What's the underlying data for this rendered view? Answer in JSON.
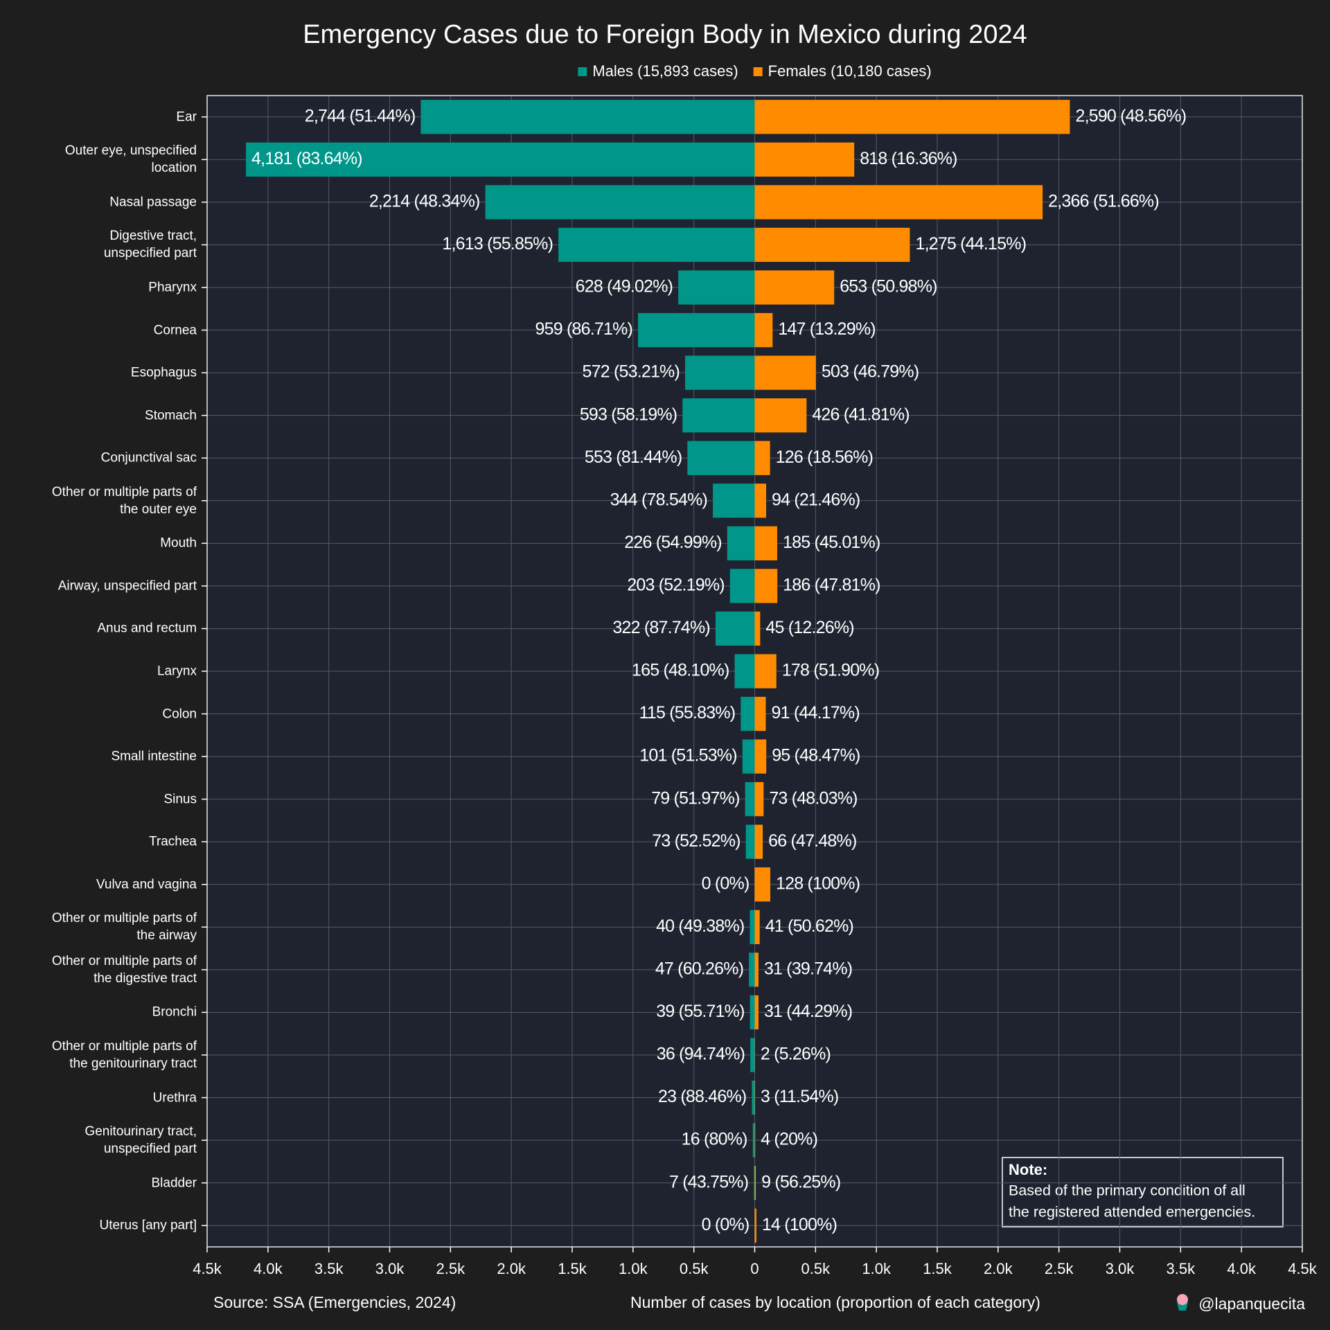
{
  "chart_data": {
    "type": "bar",
    "orientation": "horizontal",
    "layout": "diverging",
    "title": "Emergency Cases due to Foreign Body in Mexico during 2024",
    "source": "Source: SSA (Emergencies, 2024)",
    "x_label": "Number of cases by location (proportion of each category)",
    "credit": "@lapanquecita",
    "note": {
      "title": "Note:",
      "lines": [
        "Based of the primary condition of all",
        "the registered attended emergencies."
      ]
    },
    "categories": [
      "Ear",
      "Outer eye, unspecified\nlocation",
      "Nasal passage",
      "Digestive tract,\nunspecified part",
      "Pharynx",
      "Cornea",
      "Esophagus",
      "Stomach",
      "Conjunctival sac",
      "Other or multiple parts of\nthe outer eye",
      "Mouth",
      "Airway, unspecified part",
      "Anus and rectum",
      "Larynx",
      "Colon",
      "Small intestine",
      "Sinus",
      "Trachea",
      "Vulva and vagina",
      "Other or multiple parts of\nthe airway",
      "Other or multiple parts of\nthe digestive tract",
      "Bronchi",
      "Other or multiple parts of\nthe genitourinary tract",
      "Urethra",
      "Genitourinary tract,\nunspecified part",
      "Bladder",
      "Uterus [any part]"
    ],
    "series": [
      {
        "name": "Males (15,893 cases)",
        "color": "#00968a",
        "side": "left",
        "values": [
          2744,
          4181,
          2214,
          1613,
          628,
          959,
          572,
          593,
          553,
          344,
          226,
          203,
          322,
          165,
          115,
          101,
          79,
          73,
          0,
          40,
          47,
          39,
          36,
          23,
          16,
          7,
          0
        ],
        "value_labels": [
          "2,744 (51.44%)",
          "4,181 (83.64%)",
          "2,214 (48.34%)",
          "1,613 (55.85%)",
          "628 (49.02%)",
          "959 (86.71%)",
          "572 (53.21%)",
          "593 (58.19%)",
          "553 (81.44%)",
          "344 (78.54%)",
          "226 (54.99%)",
          "203 (52.19%)",
          "322 (87.74%)",
          "165 (48.10%)",
          "115 (55.83%)",
          "101 (51.53%)",
          "79 (51.97%)",
          "73 (52.52%)",
          "0 (0%)",
          "40 (49.38%)",
          "47 (60.26%)",
          "39 (55.71%)",
          "36 (94.74%)",
          "23 (88.46%)",
          "16 (80%)",
          "7 (43.75%)",
          "0 (0%)"
        ]
      },
      {
        "name": "Females (10,180 cases)",
        "color": "#ff8c00",
        "side": "right",
        "values": [
          2590,
          818,
          2366,
          1275,
          653,
          147,
          503,
          426,
          126,
          94,
          185,
          186,
          45,
          178,
          91,
          95,
          73,
          66,
          128,
          41,
          31,
          31,
          2,
          3,
          4,
          9,
          14
        ],
        "value_labels": [
          "2,590 (48.56%)",
          "818 (16.36%)",
          "2,366 (51.66%)",
          "1,275 (44.15%)",
          "653 (50.98%)",
          "147 (13.29%)",
          "503 (46.79%)",
          "426 (41.81%)",
          "126 (18.56%)",
          "94 (21.46%)",
          "185 (45.01%)",
          "186 (47.81%)",
          "45 (12.26%)",
          "178 (51.90%)",
          "91 (44.17%)",
          "95 (48.47%)",
          "73 (48.03%)",
          "66 (47.48%)",
          "128 (100%)",
          "41 (50.62%)",
          "31 (39.74%)",
          "31 (44.29%)",
          "2 (5.26%)",
          "3 (11.54%)",
          "4 (20%)",
          "9 (56.25%)",
          "14 (100%)"
        ]
      }
    ],
    "xlim": [
      0,
      4500
    ],
    "xticks": [
      0,
      {
        "value": 500,
        "label": "0.5k"
      },
      {
        "value": 1000,
        "label": "1.0k"
      },
      {
        "value": 1500,
        "label": "1.5k"
      },
      {
        "value": 2000,
        "label": "2.0k"
      },
      {
        "value": 2500,
        "label": "2.5k"
      },
      {
        "value": 3000,
        "label": "3.0k"
      },
      {
        "value": 3500,
        "label": "3.5k"
      },
      {
        "value": 4000,
        "label": "4.0k"
      },
      {
        "value": 4500,
        "label": "4.5k"
      }
    ],
    "grid": true,
    "legend": "top"
  }
}
